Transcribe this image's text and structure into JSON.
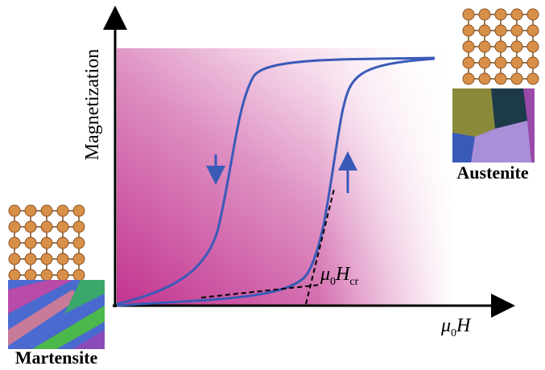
{
  "axes": {
    "y_label": "Magnetization",
    "x_label": {
      "symbol": "μ",
      "subscript": "0",
      "main": "H"
    }
  },
  "annotation": {
    "symbol": "μ",
    "subscript": "0",
    "main": "H",
    "suffix": "cr"
  },
  "phases": {
    "austenite": "Austenite",
    "martensite": "Martensite"
  }
}
